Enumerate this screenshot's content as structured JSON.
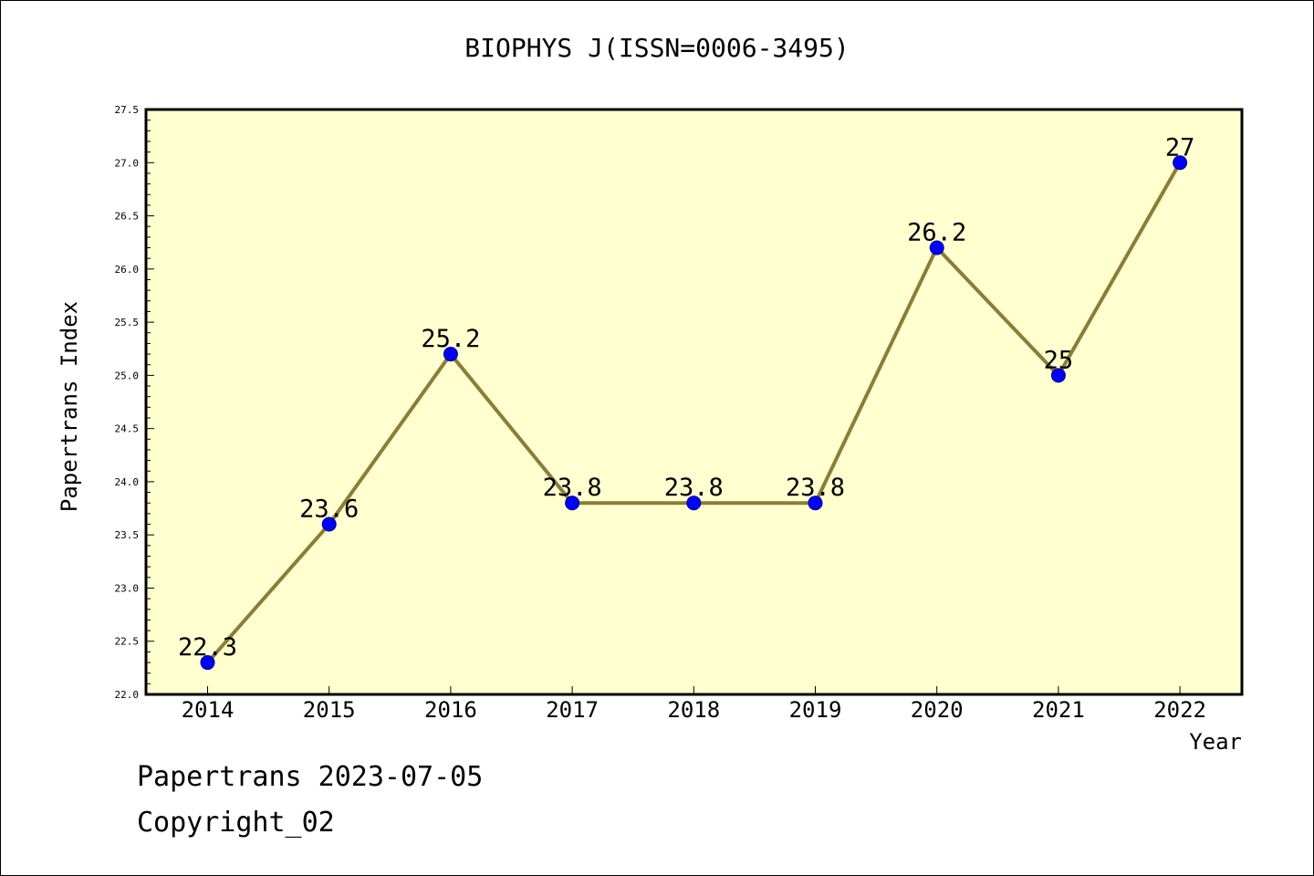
{
  "chart_data": {
    "type": "line",
    "title": "BIOPHYS J(ISSN=0006-3495)",
    "xlabel": "Year",
    "ylabel": "Papertrans Index",
    "categories": [
      "2014",
      "2015",
      "2016",
      "2017",
      "2018",
      "2019",
      "2020",
      "2021",
      "2022"
    ],
    "values": [
      22.3,
      23.6,
      25.2,
      23.8,
      23.8,
      23.8,
      26.2,
      25,
      27
    ],
    "data_labels": [
      "22.3",
      "23.6",
      "25.2",
      "23.8",
      "23.8",
      "23.8",
      "26.2",
      "25",
      "27"
    ],
    "ylim": [
      22.0,
      27.5
    ],
    "yticks": [
      "22.0",
      "22.5",
      "23.0",
      "23.5",
      "24.0",
      "24.5",
      "25.0",
      "25.5",
      "26.0",
      "26.5",
      "27.0",
      "27.5"
    ],
    "grid": false,
    "colors": {
      "plot_background": "#ffffd0",
      "line": "#8b7d35",
      "marker": "#0000ff"
    }
  },
  "footer": {
    "line1": "Papertrans 2023-07-05",
    "line2": "Copyright_02"
  }
}
